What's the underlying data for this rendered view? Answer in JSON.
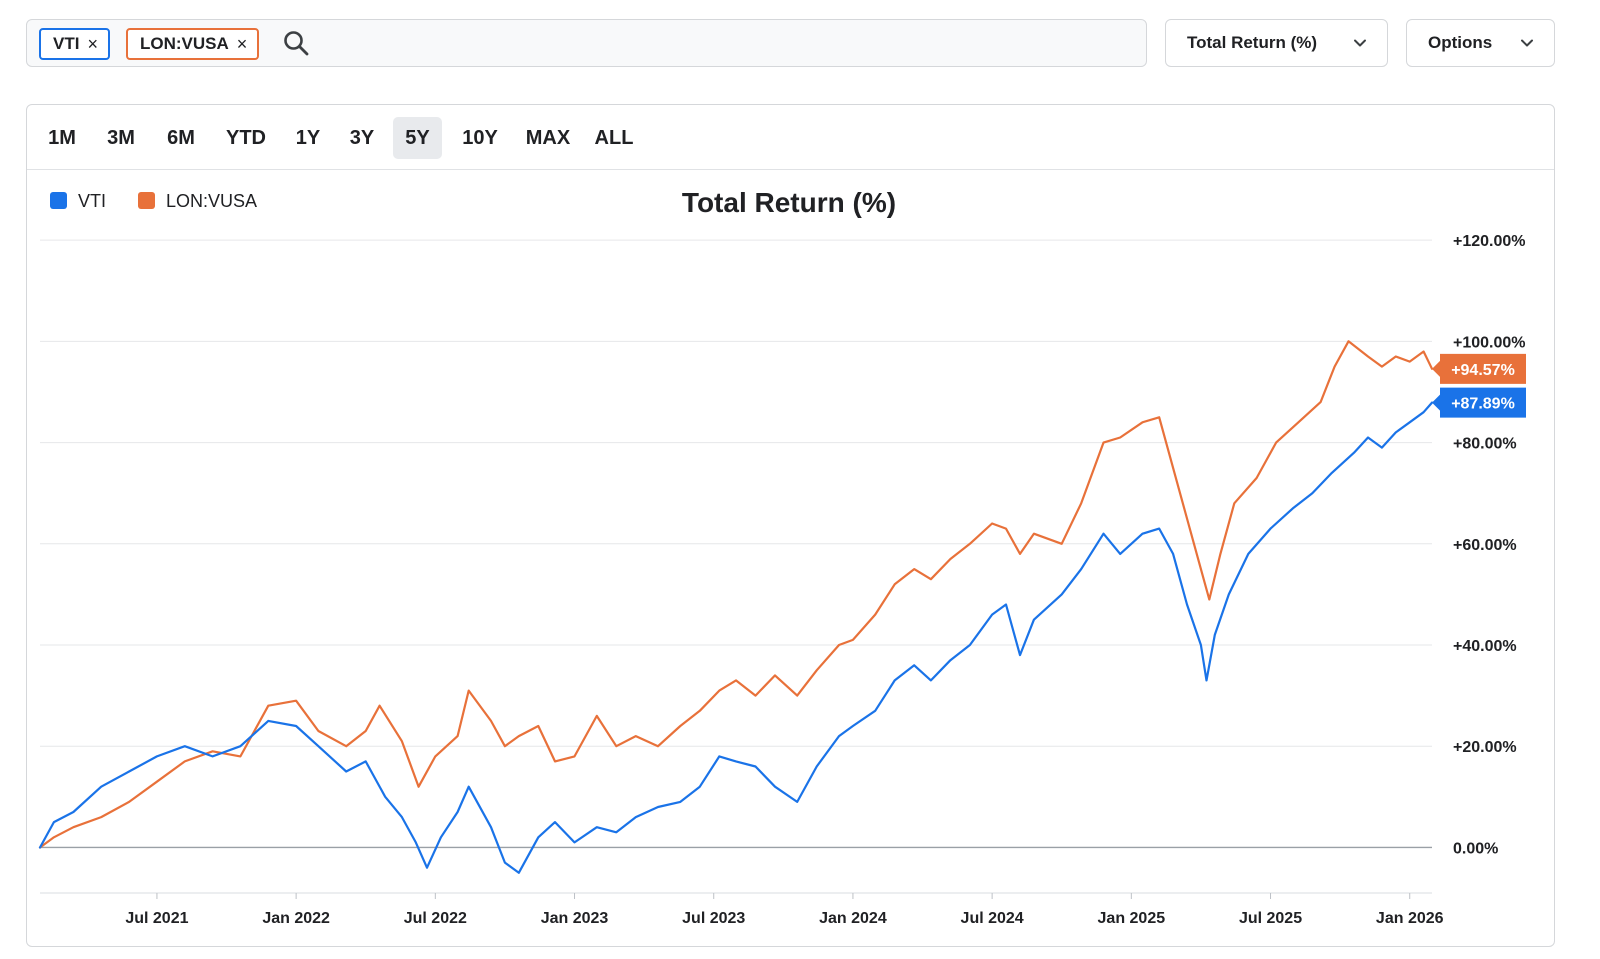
{
  "search": {
    "chips": [
      {
        "label": "VTI",
        "color": "#1a73e8"
      },
      {
        "label": "LON:VUSA",
        "color": "#e8713a"
      }
    ],
    "remove_glyph": "×",
    "icon": "search-icon"
  },
  "controls": {
    "metric_label": "Total Return (%)",
    "options_label": "Options",
    "chevron_icon": "chevron-down-icon"
  },
  "ranges": {
    "items": [
      "1M",
      "3M",
      "6M",
      "YTD",
      "1Y",
      "3Y",
      "5Y",
      "10Y",
      "MAX",
      "ALL"
    ],
    "active": "5Y"
  },
  "chart_data": {
    "type": "line",
    "title": "Total Return (%)",
    "xlabel": "",
    "ylabel": "",
    "x_ticks": [
      "Jul 2021",
      "Jan 2022",
      "Jul 2022",
      "Jan 2023",
      "Jul 2023",
      "Jan 2024",
      "Jul 2024",
      "Jan 2025",
      "Jul 2025",
      "Jan 2026"
    ],
    "x_tick_dates": [
      2021.5,
      2022.0,
      2022.5,
      2023.0,
      2023.5,
      2024.0,
      2024.5,
      2025.0,
      2025.5,
      2026.0
    ],
    "xlim": [
      2021.08,
      2026.08
    ],
    "y_ticks": [
      0,
      20,
      40,
      60,
      80,
      100,
      120
    ],
    "y_tick_labels": [
      "0.00%",
      "+20.00%",
      "+40.00%",
      "+60.00%",
      "+80.00%",
      "+100.00%",
      "+120.00%"
    ],
    "ylim": [
      -9,
      122
    ],
    "grid": true,
    "legend_position": "top-left",
    "series": [
      {
        "name": "VTI",
        "color": "#1a73e8",
        "last_label": "+87.89%",
        "points": [
          [
            2021.08,
            0
          ],
          [
            2021.13,
            5
          ],
          [
            2021.2,
            7
          ],
          [
            2021.3,
            12
          ],
          [
            2021.4,
            15
          ],
          [
            2021.5,
            18
          ],
          [
            2021.6,
            20
          ],
          [
            2021.7,
            18
          ],
          [
            2021.8,
            20
          ],
          [
            2021.9,
            25
          ],
          [
            2022.0,
            24
          ],
          [
            2022.08,
            20
          ],
          [
            2022.18,
            15
          ],
          [
            2022.25,
            17
          ],
          [
            2022.32,
            10
          ],
          [
            2022.38,
            6
          ],
          [
            2022.43,
            1
          ],
          [
            2022.47,
            -4
          ],
          [
            2022.52,
            2
          ],
          [
            2022.58,
            7
          ],
          [
            2022.62,
            12
          ],
          [
            2022.7,
            4
          ],
          [
            2022.75,
            -3
          ],
          [
            2022.8,
            -5
          ],
          [
            2022.87,
            2
          ],
          [
            2022.93,
            5
          ],
          [
            2023.0,
            1
          ],
          [
            2023.08,
            4
          ],
          [
            2023.15,
            3
          ],
          [
            2023.22,
            6
          ],
          [
            2023.3,
            8
          ],
          [
            2023.38,
            9
          ],
          [
            2023.45,
            12
          ],
          [
            2023.52,
            18
          ],
          [
            2023.58,
            17
          ],
          [
            2023.65,
            16
          ],
          [
            2023.72,
            12
          ],
          [
            2023.8,
            9
          ],
          [
            2023.87,
            16
          ],
          [
            2023.95,
            22
          ],
          [
            2024.0,
            24
          ],
          [
            2024.08,
            27
          ],
          [
            2024.15,
            33
          ],
          [
            2024.22,
            36
          ],
          [
            2024.28,
            33
          ],
          [
            2024.35,
            37
          ],
          [
            2024.42,
            40
          ],
          [
            2024.5,
            46
          ],
          [
            2024.55,
            48
          ],
          [
            2024.6,
            38
          ],
          [
            2024.65,
            45
          ],
          [
            2024.75,
            50
          ],
          [
            2024.82,
            55
          ],
          [
            2024.9,
            62
          ],
          [
            2024.96,
            58
          ],
          [
            2025.04,
            62
          ],
          [
            2025.1,
            63
          ],
          [
            2025.15,
            58
          ],
          [
            2025.2,
            48
          ],
          [
            2025.25,
            40
          ],
          [
            2025.27,
            33
          ],
          [
            2025.3,
            42
          ],
          [
            2025.35,
            50
          ],
          [
            2025.42,
            58
          ],
          [
            2025.5,
            63
          ],
          [
            2025.58,
            67
          ],
          [
            2025.65,
            70
          ],
          [
            2025.72,
            74
          ],
          [
            2025.8,
            78
          ],
          [
            2025.85,
            81
          ],
          [
            2025.9,
            79
          ],
          [
            2025.95,
            82
          ],
          [
            2026.0,
            84
          ],
          [
            2026.05,
            86
          ],
          [
            2026.08,
            87.89
          ]
        ]
      },
      {
        "name": "LON:VUSA",
        "color": "#e8713a",
        "last_label": "+94.57%",
        "points": [
          [
            2021.08,
            0
          ],
          [
            2021.13,
            2
          ],
          [
            2021.2,
            4
          ],
          [
            2021.3,
            6
          ],
          [
            2021.4,
            9
          ],
          [
            2021.5,
            13
          ],
          [
            2021.6,
            17
          ],
          [
            2021.7,
            19
          ],
          [
            2021.8,
            18
          ],
          [
            2021.9,
            28
          ],
          [
            2022.0,
            29
          ],
          [
            2022.08,
            23
          ],
          [
            2022.18,
            20
          ],
          [
            2022.25,
            23
          ],
          [
            2022.3,
            28
          ],
          [
            2022.38,
            21
          ],
          [
            2022.44,
            12
          ],
          [
            2022.5,
            18
          ],
          [
            2022.58,
            22
          ],
          [
            2022.62,
            31
          ],
          [
            2022.7,
            25
          ],
          [
            2022.75,
            20
          ],
          [
            2022.8,
            22
          ],
          [
            2022.87,
            24
          ],
          [
            2022.93,
            17
          ],
          [
            2023.0,
            18
          ],
          [
            2023.08,
            26
          ],
          [
            2023.15,
            20
          ],
          [
            2023.22,
            22
          ],
          [
            2023.3,
            20
          ],
          [
            2023.38,
            24
          ],
          [
            2023.45,
            27
          ],
          [
            2023.52,
            31
          ],
          [
            2023.58,
            33
          ],
          [
            2023.65,
            30
          ],
          [
            2023.72,
            34
          ],
          [
            2023.8,
            30
          ],
          [
            2023.87,
            35
          ],
          [
            2023.95,
            40
          ],
          [
            2024.0,
            41
          ],
          [
            2024.08,
            46
          ],
          [
            2024.15,
            52
          ],
          [
            2024.22,
            55
          ],
          [
            2024.28,
            53
          ],
          [
            2024.35,
            57
          ],
          [
            2024.42,
            60
          ],
          [
            2024.5,
            64
          ],
          [
            2024.55,
            63
          ],
          [
            2024.6,
            58
          ],
          [
            2024.65,
            62
          ],
          [
            2024.75,
            60
          ],
          [
            2024.82,
            68
          ],
          [
            2024.9,
            80
          ],
          [
            2024.96,
            81
          ],
          [
            2025.04,
            84
          ],
          [
            2025.1,
            85
          ],
          [
            2025.15,
            75
          ],
          [
            2025.2,
            65
          ],
          [
            2025.25,
            55
          ],
          [
            2025.28,
            49
          ],
          [
            2025.32,
            58
          ],
          [
            2025.37,
            68
          ],
          [
            2025.45,
            73
          ],
          [
            2025.52,
            80
          ],
          [
            2025.6,
            84
          ],
          [
            2025.68,
            88
          ],
          [
            2025.73,
            95
          ],
          [
            2025.78,
            100
          ],
          [
            2025.85,
            97
          ],
          [
            2025.9,
            95
          ],
          [
            2025.95,
            97
          ],
          [
            2026.0,
            96
          ],
          [
            2026.05,
            98
          ],
          [
            2026.08,
            94.57
          ]
        ]
      }
    ]
  }
}
